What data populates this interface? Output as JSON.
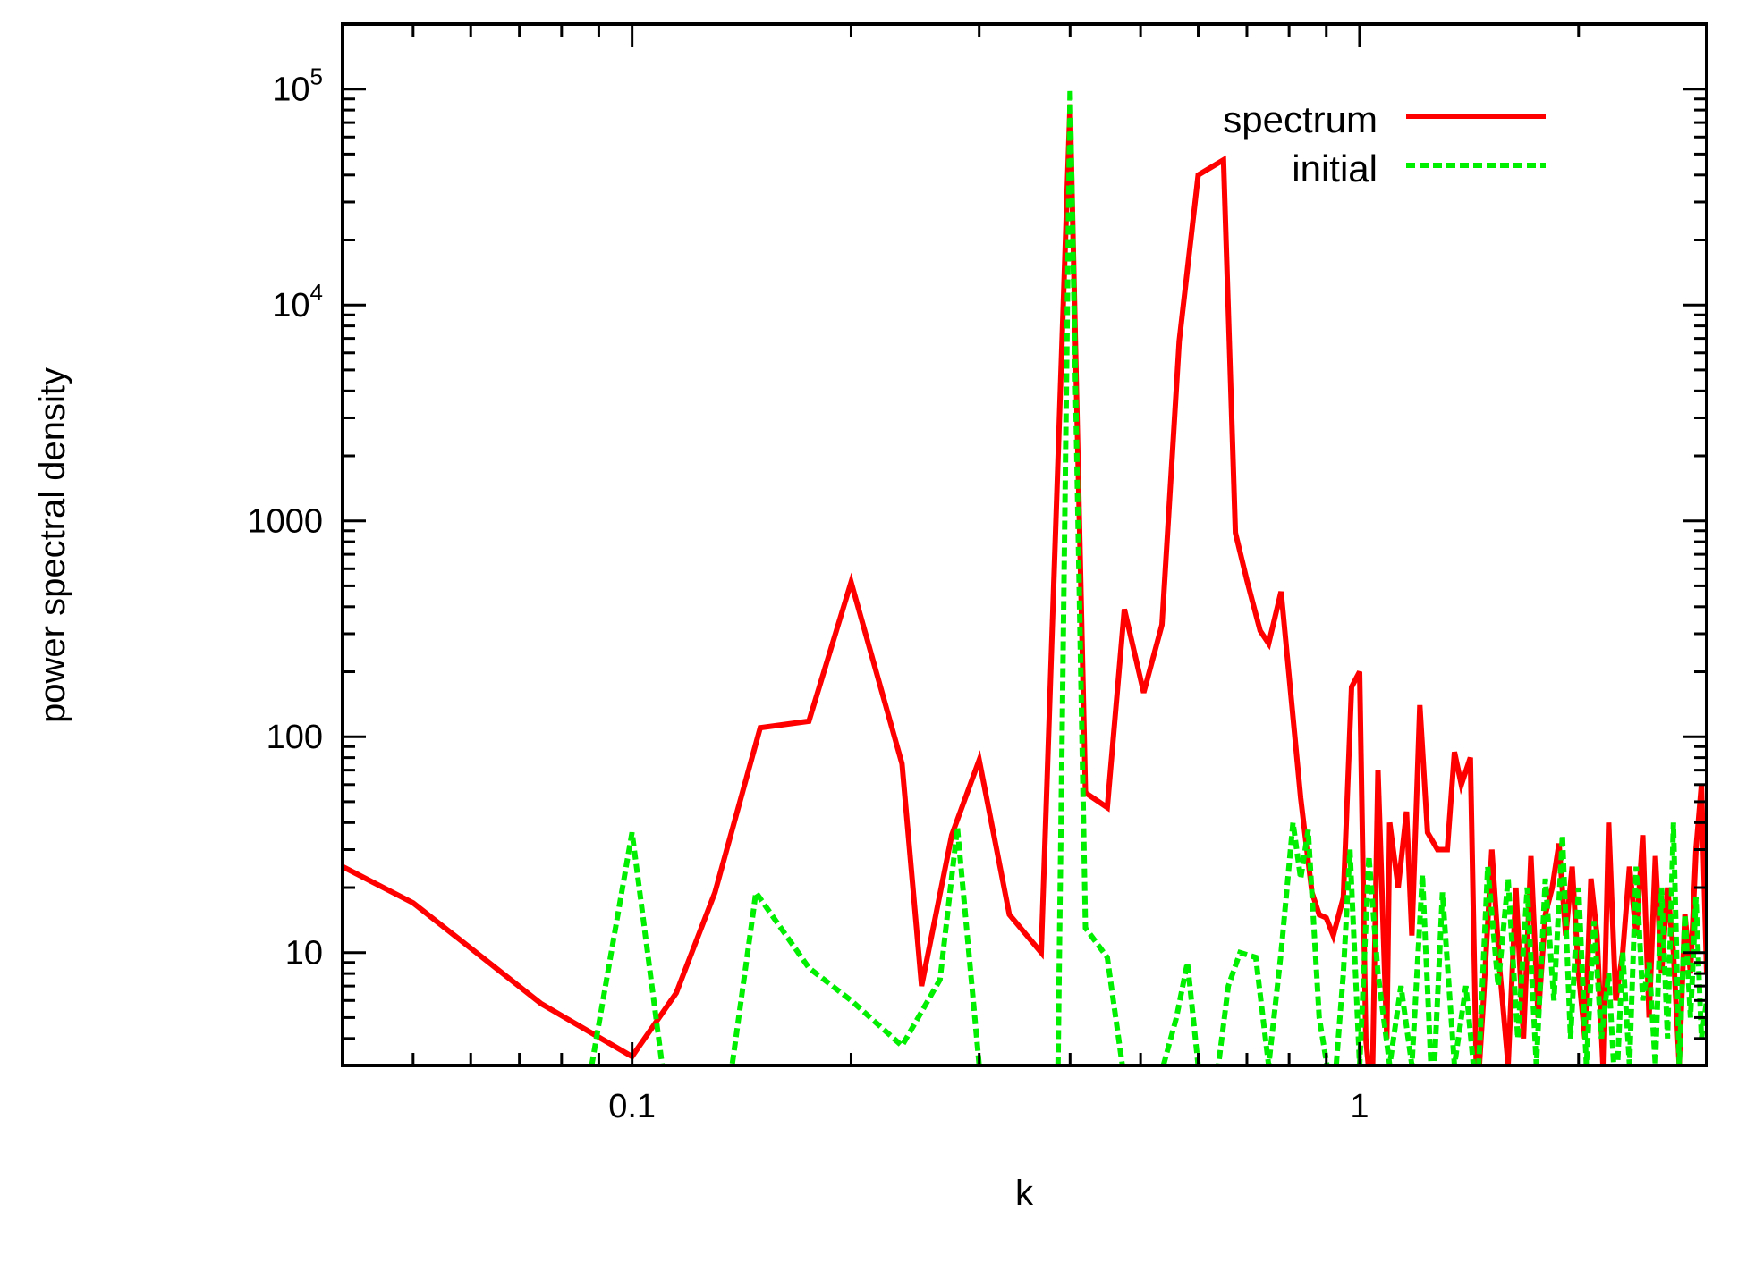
{
  "chart_data": {
    "type": "line",
    "xlabel": "k",
    "ylabel": "power spectral density",
    "xscale": "log",
    "yscale": "log",
    "xlim": [
      0.04,
      3.0
    ],
    "ylim": [
      3,
      200000
    ],
    "x_ticks": [
      {
        "value": 0.1,
        "label": "0.1"
      },
      {
        "value": 1,
        "label": "1"
      }
    ],
    "y_ticks": [
      {
        "value": 10,
        "label": "10",
        "base": "10",
        "exp": ""
      },
      {
        "value": 100,
        "label": "100",
        "base": "100",
        "exp": ""
      },
      {
        "value": 1000,
        "label": "1000",
        "base": "1000",
        "exp": ""
      },
      {
        "value": 10000,
        "label": "10^4",
        "base": "10",
        "exp": "4"
      },
      {
        "value": 100000,
        "label": "10^5",
        "base": "10",
        "exp": "5"
      }
    ],
    "grid": false,
    "legend_position": "top-right",
    "series": [
      {
        "name": "spectrum",
        "color": "#ff0000",
        "style": "solid",
        "points": [
          [
            0.04,
            25
          ],
          [
            0.05,
            17
          ],
          [
            0.075,
            5.8
          ],
          [
            0.1,
            3.3
          ],
          [
            0.115,
            6.5
          ],
          [
            0.13,
            19
          ],
          [
            0.15,
            110
          ],
          [
            0.175,
            118
          ],
          [
            0.2,
            520
          ],
          [
            0.235,
            75
          ],
          [
            0.25,
            7
          ],
          [
            0.275,
            35
          ],
          [
            0.3,
            78
          ],
          [
            0.33,
            15
          ],
          [
            0.365,
            10
          ],
          [
            0.4,
            85000
          ],
          [
            0.42,
            55
          ],
          [
            0.45,
            47
          ],
          [
            0.475,
            390
          ],
          [
            0.505,
            160
          ],
          [
            0.535,
            330
          ],
          [
            0.565,
            6800
          ],
          [
            0.6,
            40000
          ],
          [
            0.65,
            47000
          ],
          [
            0.675,
            880
          ],
          [
            0.7,
            530
          ],
          [
            0.73,
            310
          ],
          [
            0.75,
            270
          ],
          [
            0.78,
            470
          ],
          [
            0.83,
            52
          ],
          [
            0.86,
            19
          ],
          [
            0.88,
            15
          ],
          [
            0.9,
            14.5
          ],
          [
            0.92,
            12
          ],
          [
            0.95,
            18
          ],
          [
            0.975,
            170
          ],
          [
            1.0,
            200
          ],
          [
            1.02,
            4
          ],
          [
            1.04,
            2
          ],
          [
            1.06,
            70
          ],
          [
            1.09,
            4
          ],
          [
            1.1,
            40
          ],
          [
            1.13,
            20
          ],
          [
            1.16,
            45
          ],
          [
            1.18,
            12
          ],
          [
            1.21,
            140
          ],
          [
            1.24,
            36
          ],
          [
            1.28,
            30
          ],
          [
            1.32,
            30
          ],
          [
            1.35,
            85
          ],
          [
            1.38,
            60
          ],
          [
            1.42,
            80
          ],
          [
            1.45,
            2
          ],
          [
            1.48,
            6
          ],
          [
            1.52,
            30
          ],
          [
            1.56,
            8
          ],
          [
            1.6,
            3
          ],
          [
            1.64,
            20
          ],
          [
            1.68,
            4
          ],
          [
            1.72,
            28
          ],
          [
            1.76,
            5
          ],
          [
            1.8,
            15
          ],
          [
            1.84,
            20
          ],
          [
            1.88,
            32
          ],
          [
            1.92,
            12
          ],
          [
            1.96,
            25
          ],
          [
            2.0,
            8
          ],
          [
            2.04,
            4
          ],
          [
            2.08,
            22
          ],
          [
            2.12,
            12
          ],
          [
            2.16,
            3
          ],
          [
            2.2,
            40
          ],
          [
            2.25,
            6
          ],
          [
            2.3,
            10
          ],
          [
            2.35,
            25
          ],
          [
            2.4,
            12
          ],
          [
            2.45,
            35
          ],
          [
            2.5,
            5
          ],
          [
            2.55,
            28
          ],
          [
            2.6,
            8
          ],
          [
            2.65,
            20
          ],
          [
            2.7,
            10
          ],
          [
            2.75,
            3
          ],
          [
            2.8,
            15
          ],
          [
            2.85,
            8
          ],
          [
            2.9,
            30
          ],
          [
            2.95,
            60
          ],
          [
            3.0,
            8
          ]
        ]
      },
      {
        "name": "initial",
        "color": "#00ee00",
        "style": "dashed",
        "points": [
          [
            0.088,
            3
          ],
          [
            0.1,
            36
          ],
          [
            0.11,
            3
          ],
          [
            0.127,
            2
          ],
          [
            0.135,
            2
          ],
          [
            0.148,
            19
          ],
          [
            0.175,
            8.5
          ],
          [
            0.2,
            6
          ],
          [
            0.235,
            3.7
          ],
          [
            0.265,
            7.5
          ],
          [
            0.28,
            38
          ],
          [
            0.3,
            3
          ],
          [
            0.31,
            2.8
          ],
          [
            0.35,
            2.6
          ],
          [
            0.385,
            3
          ],
          [
            0.4,
            100000
          ],
          [
            0.42,
            13
          ],
          [
            0.45,
            9.5
          ],
          [
            0.48,
            2
          ],
          [
            0.52,
            2
          ],
          [
            0.56,
            5
          ],
          [
            0.58,
            9
          ],
          [
            0.6,
            3
          ],
          [
            0.63,
            2
          ],
          [
            0.66,
            7
          ],
          [
            0.685,
            10
          ],
          [
            0.72,
            9.5
          ],
          [
            0.75,
            3
          ],
          [
            0.78,
            10
          ],
          [
            0.81,
            40
          ],
          [
            0.83,
            22
          ],
          [
            0.85,
            37
          ],
          [
            0.88,
            5
          ],
          [
            0.92,
            2
          ],
          [
            0.95,
            8
          ],
          [
            0.97,
            30
          ],
          [
            1.0,
            3
          ],
          [
            1.03,
            28
          ],
          [
            1.06,
            8
          ],
          [
            1.1,
            3
          ],
          [
            1.14,
            7
          ],
          [
            1.18,
            3
          ],
          [
            1.22,
            23
          ],
          [
            1.26,
            2
          ],
          [
            1.3,
            19
          ],
          [
            1.35,
            3
          ],
          [
            1.4,
            7
          ],
          [
            1.45,
            2
          ],
          [
            1.5,
            25
          ],
          [
            1.55,
            7
          ],
          [
            1.6,
            22
          ],
          [
            1.65,
            4
          ],
          [
            1.7,
            20
          ],
          [
            1.75,
            3
          ],
          [
            1.8,
            22
          ],
          [
            1.85,
            6
          ],
          [
            1.9,
            35
          ],
          [
            1.95,
            4
          ],
          [
            2.0,
            20
          ],
          [
            2.05,
            3
          ],
          [
            2.1,
            14
          ],
          [
            2.15,
            4
          ],
          [
            2.2,
            8
          ],
          [
            2.25,
            2
          ],
          [
            2.3,
            10
          ],
          [
            2.35,
            3
          ],
          [
            2.4,
            25
          ],
          [
            2.45,
            6
          ],
          [
            2.5,
            9
          ],
          [
            2.55,
            3
          ],
          [
            2.6,
            20
          ],
          [
            2.65,
            4
          ],
          [
            2.7,
            40
          ],
          [
            2.75,
            3
          ],
          [
            2.8,
            15
          ],
          [
            2.85,
            5
          ],
          [
            2.9,
            18
          ],
          [
            2.95,
            4
          ],
          [
            3.0,
            6
          ]
        ]
      }
    ]
  }
}
